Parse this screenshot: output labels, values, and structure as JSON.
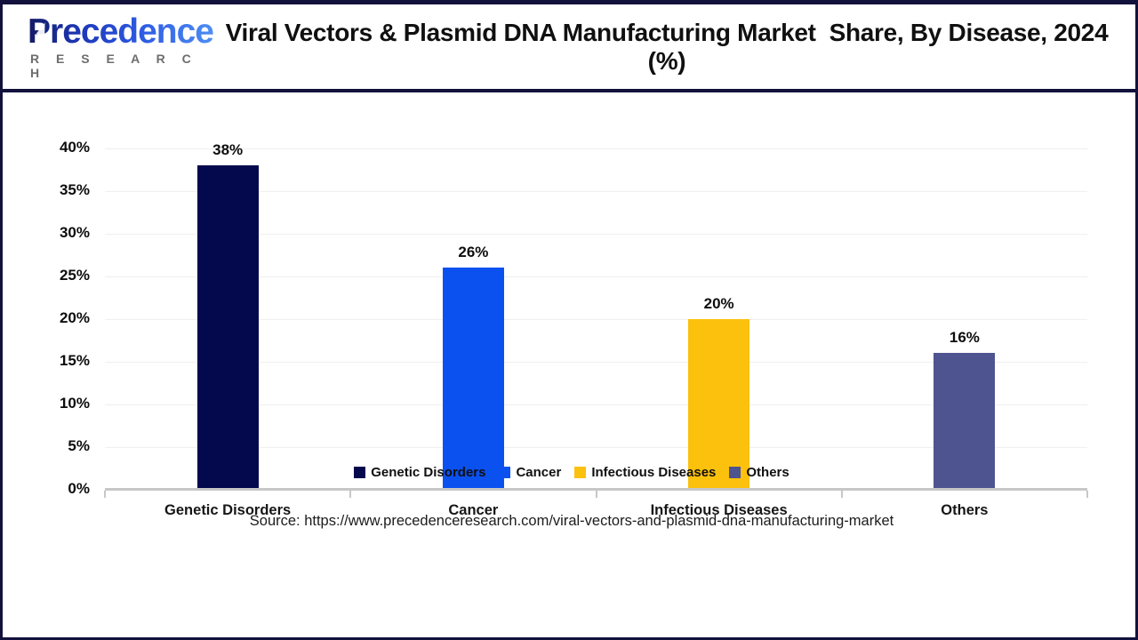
{
  "header": {
    "brand": "Precedence",
    "brand_sub": "R E S E A R C H",
    "title": "Viral Vectors & Plasmid DNA Manufacturing Market  Share, By Disease, 2024 (%)"
  },
  "chart_data": {
    "type": "bar",
    "title": "Viral Vectors & Plasmid DNA Manufacturing Market Share, By Disease, 2024 (%)",
    "categories": [
      "Genetic Disorders",
      "Cancer",
      "Infectious Diseases",
      "Others"
    ],
    "values": [
      38,
      26,
      20,
      16
    ],
    "value_labels": [
      "38%",
      "26%",
      "20%",
      "16%"
    ],
    "bar_colors": [
      "#04094e",
      "#0b51f0",
      "#fcc10d",
      "#4d5490"
    ],
    "xlabel": "",
    "ylabel": "",
    "ylim": [
      0,
      40
    ],
    "ytick_step": 5,
    "ytick_labels": [
      "0%",
      "5%",
      "10%",
      "15%",
      "20%",
      "25%",
      "30%",
      "35%",
      "40%"
    ],
    "grid": true,
    "legend_position": "bottom"
  },
  "legend": {
    "items": [
      {
        "label": "Genetic Disorders",
        "color": "#04094e"
      },
      {
        "label": "Cancer",
        "color": "#0b51f0"
      },
      {
        "label": "Infectious Diseases",
        "color": "#fcc10d"
      },
      {
        "label": "Others",
        "color": "#4d5490"
      }
    ]
  },
  "source": {
    "text": "Source: https://www.precedenceresearch.com/viral-vectors-and-plasmid-dna-manufacturing-market"
  },
  "colors": {
    "frame_border": "#12123d",
    "gridline": "#efefef",
    "axis": "#c7c7c7",
    "title_text": "#101010"
  }
}
